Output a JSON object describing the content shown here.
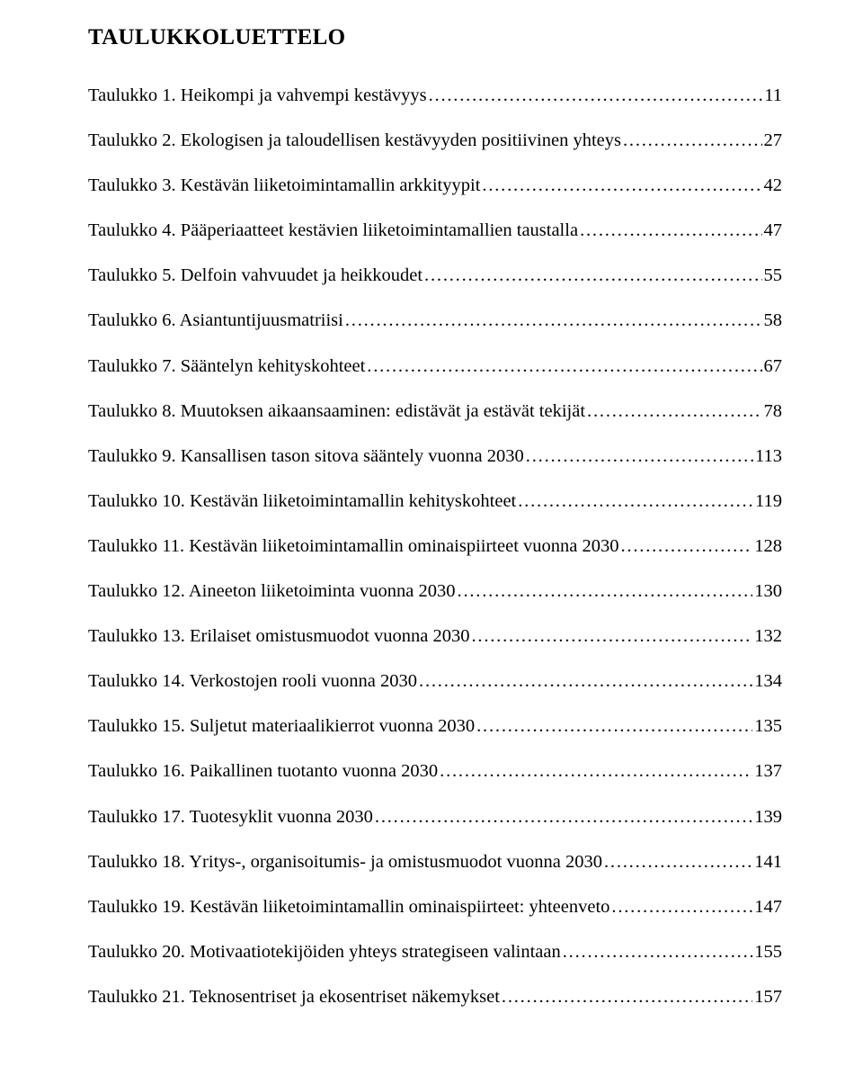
{
  "title": "TAULUKKOLUETTELO",
  "font": {
    "family": "Times New Roman",
    "title_size_pt": 19,
    "body_size_pt": 15
  },
  "colors": {
    "text": "#000000",
    "background": "#ffffff"
  },
  "entries": [
    {
      "label": "Taulukko 1. Heikompi ja vahvempi kestävyys",
      "page": "11"
    },
    {
      "label": "Taulukko 2. Ekologisen ja taloudellisen kestävyyden positiivinen yhteys",
      "page": "27"
    },
    {
      "label": "Taulukko 3. Kestävän liiketoimintamallin arkkityypit",
      "page": "42"
    },
    {
      "label": "Taulukko 4. Pääperiaatteet kestävien liiketoimintamallien taustalla",
      "page": "47"
    },
    {
      "label": "Taulukko 5. Delfoin vahvuudet ja heikkoudet",
      "page": "55"
    },
    {
      "label": "Taulukko 6. Asiantuntijuusmatriisi",
      "page": "58"
    },
    {
      "label": "Taulukko 7. Sääntelyn kehityskohteet",
      "page": "67"
    },
    {
      "label": "Taulukko 8. Muutoksen aikaansaaminen: edistävät ja estävät tekijät",
      "page": "78"
    },
    {
      "label": "Taulukko 9. Kansallisen tason sitova sääntely vuonna 2030",
      "page": "113"
    },
    {
      "label": "Taulukko 10. Kestävän liiketoimintamallin kehityskohteet",
      "page": "119"
    },
    {
      "label": "Taulukko 11. Kestävän liiketoimintamallin ominaispiirteet vuonna 2030",
      "page": "128"
    },
    {
      "label": "Taulukko 12. Aineeton liiketoiminta vuonna 2030",
      "page": "130"
    },
    {
      "label": "Taulukko 13. Erilaiset omistusmuodot vuonna 2030",
      "page": "132"
    },
    {
      "label": "Taulukko 14. Verkostojen rooli vuonna 2030",
      "page": "134"
    },
    {
      "label": "Taulukko 15. Suljetut materiaalikierrot vuonna 2030",
      "page": "135"
    },
    {
      "label": "Taulukko 16. Paikallinen tuotanto vuonna 2030",
      "page": "137"
    },
    {
      "label": "Taulukko 17. Tuotesyklit vuonna 2030",
      "page": "139"
    },
    {
      "label": "Taulukko 18. Yritys-, organisoitumis- ja omistusmuodot vuonna 2030",
      "page": "141"
    },
    {
      "label": "Taulukko 19. Kestävän liiketoimintamallin ominaispiirteet: yhteenveto",
      "page": "147"
    },
    {
      "label": "Taulukko 20. Motivaatiotekijöiden yhteys strategiseen valintaan",
      "page": "155"
    },
    {
      "label": "Taulukko 21. Teknosentriset ja ekosentriset näkemykset",
      "page": "157"
    }
  ]
}
